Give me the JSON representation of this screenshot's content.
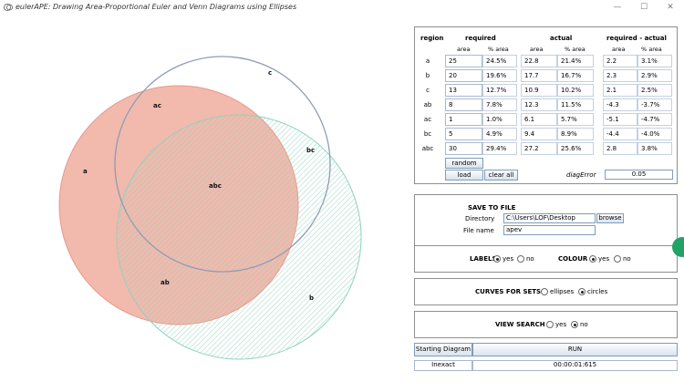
{
  "window": {
    "title": "eulerAPE: Drawing Area-Proportional Euler and Venn Diagrams using Ellipses",
    "controls": [
      "—",
      "☐",
      "✕"
    ]
  },
  "diagram": {
    "colors": {
      "a_fill": "#f2b9ad",
      "a_stroke": "#e9998a",
      "b_hatch": "#8fd2bf",
      "b_stroke": "#8fd2bf",
      "c_stroke": "#8e9db3"
    },
    "labels": {
      "a": "a",
      "b": "b",
      "c": "c",
      "ab": "ab",
      "ac": "ac",
      "bc": "bc",
      "abc": "abc"
    }
  },
  "table": {
    "headers": {
      "region": "region",
      "required": "required",
      "actual": "actual",
      "diff": "required - actual"
    },
    "subheaders": {
      "area": "area",
      "pct": "% area"
    },
    "rows": [
      {
        "region": "a",
        "req_area": "25",
        "req_pct": "24.5%",
        "act_area": "22.8",
        "act_pct": "21.4%",
        "diff_area": "2.2",
        "diff_pct": "3.1%"
      },
      {
        "region": "b",
        "req_area": "20",
        "req_pct": "19.6%",
        "act_area": "17.7",
        "act_pct": "16.7%",
        "diff_area": "2.3",
        "diff_pct": "2.9%"
      },
      {
        "region": "c",
        "req_area": "13",
        "req_pct": "12.7%",
        "act_area": "10.9",
        "act_pct": "10.2%",
        "diff_area": "2.1",
        "diff_pct": "2.5%"
      },
      {
        "region": "ab",
        "req_area": "8",
        "req_pct": "7.8%",
        "act_area": "12.3",
        "act_pct": "11.5%",
        "diff_area": "-4.3",
        "diff_pct": "-3.7%"
      },
      {
        "region": "ac",
        "req_area": "1",
        "req_pct": "1.0%",
        "act_area": "6.1",
        "act_pct": "5.7%",
        "diff_area": "-5.1",
        "diff_pct": "-4.7%"
      },
      {
        "region": "bc",
        "req_area": "5",
        "req_pct": "4.9%",
        "act_area": "9.4",
        "act_pct": "8.9%",
        "diff_area": "-4.4",
        "diff_pct": "-4.0%"
      },
      {
        "region": "abc",
        "req_area": "30",
        "req_pct": "29.4%",
        "act_area": "27.2",
        "act_pct": "25.6%",
        "diff_area": "2.8",
        "diff_pct": "3.8%"
      }
    ],
    "random_label": "random",
    "load_label": "load",
    "clear_label": "clear all",
    "diag_error_label": "diagError",
    "diag_error_value": "0.05"
  },
  "save": {
    "heading": "SAVE TO FILE",
    "directory_label": "Directory",
    "directory_value": "C:\\Users\\LOF\\Desktop",
    "browse_label": "browse",
    "filename_label": "File name",
    "filename_value": "apev"
  },
  "labels_opt": {
    "heading": "LABELS",
    "yes": "yes",
    "no": "no",
    "selected": "yes"
  },
  "colour_opt": {
    "heading": "COLOUR",
    "yes": "yes",
    "no": "no",
    "selected": "yes"
  },
  "curves_opt": {
    "heading": "CURVES FOR SETS",
    "ellipses": "ellipses",
    "circles": "circles",
    "selected": "circles"
  },
  "view_search": {
    "heading": "VIEW SEARCH",
    "yes": "yes",
    "no": "no",
    "selected": "no"
  },
  "footer": {
    "starting_label": "Starting Diagram",
    "run_label": "RUN",
    "status_label": "Inexact",
    "time_value": "00:00:01:615"
  }
}
